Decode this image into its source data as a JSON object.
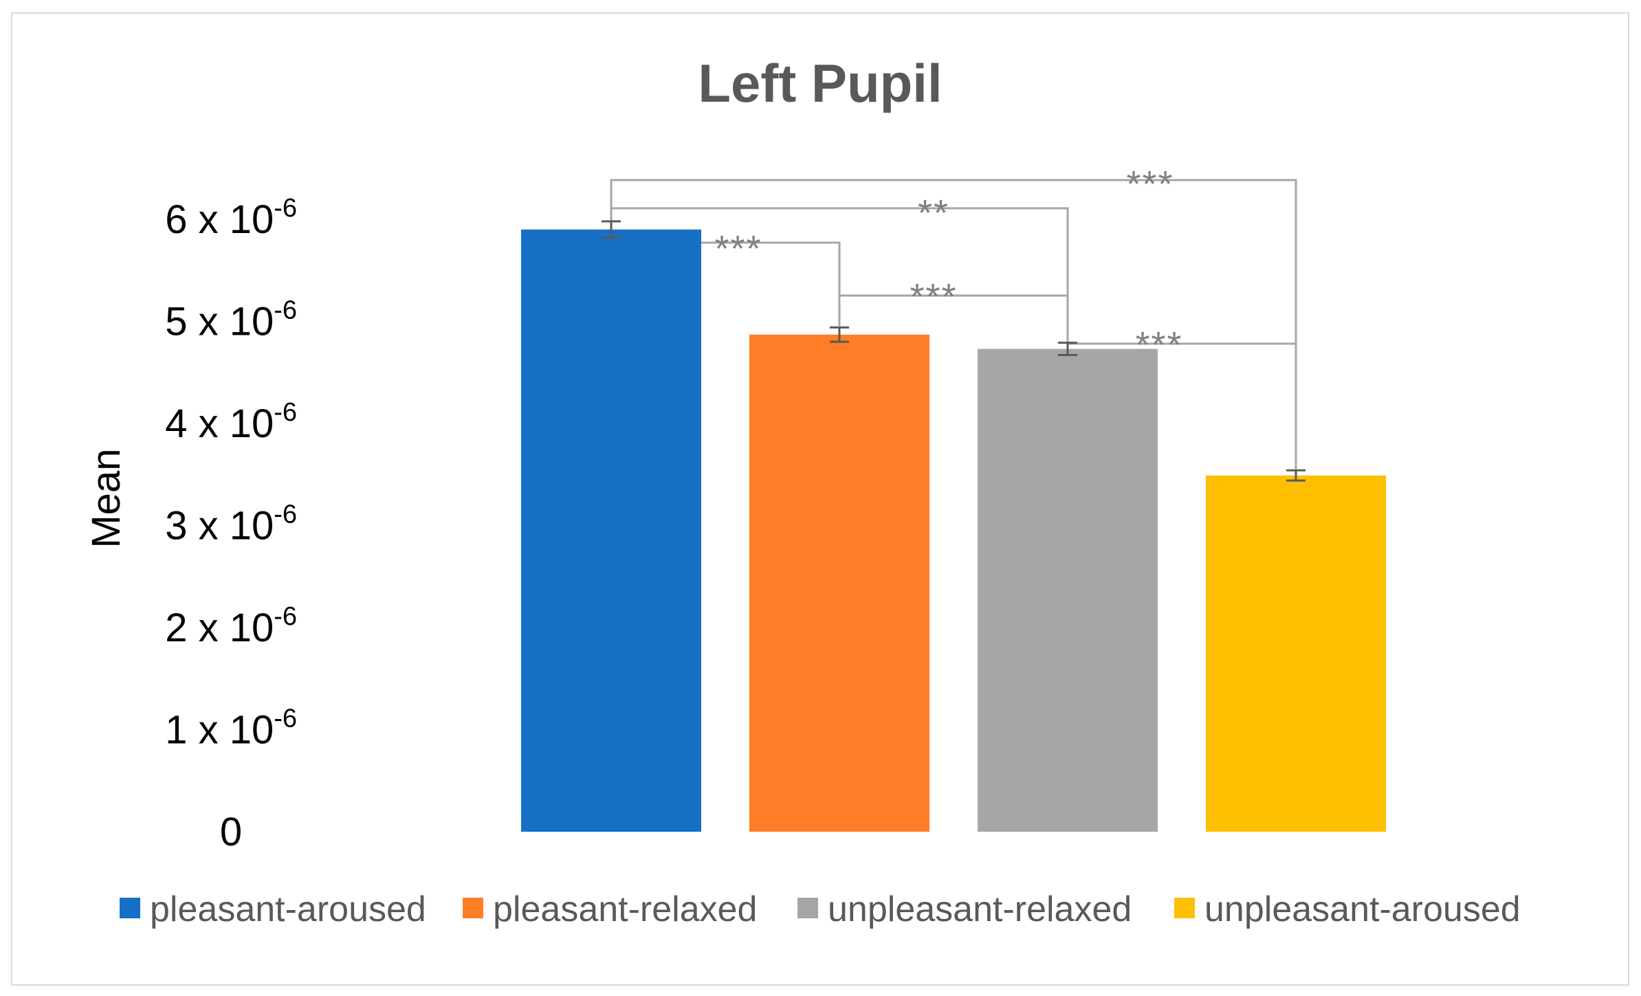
{
  "chart_data": {
    "type": "bar",
    "title": "Left Pupil",
    "ylabel": "Mean",
    "xlabel": "",
    "ylim": [
      0,
      6.0
    ],
    "y_ticks": [
      {
        "value": 0,
        "mantissa": "0",
        "exponent": ""
      },
      {
        "value": 1,
        "mantissa": "1 x 10",
        "exponent": "-6"
      },
      {
        "value": 2,
        "mantissa": "2 x 10",
        "exponent": "-6"
      },
      {
        "value": 3,
        "mantissa": "3 x 10",
        "exponent": "-6"
      },
      {
        "value": 4,
        "mantissa": "4 x 10",
        "exponent": "-6"
      },
      {
        "value": 5,
        "mantissa": "5 x 10",
        "exponent": "-6"
      },
      {
        "value": 6,
        "mantissa": "6 x 10",
        "exponent": "-6"
      }
    ],
    "value_unit_multiplier": "1e-6",
    "categories": [
      "pleasant-aroused",
      "pleasant-relaxed",
      "unpleasant-relaxed",
      "unpleasant-aroused"
    ],
    "series": [
      {
        "values": [
          5.9,
          4.87,
          4.73,
          3.49
        ],
        "errors": [
          0.08,
          0.07,
          0.06,
          0.05
        ]
      }
    ],
    "colors": [
      "#1570c6",
      "#fe7d26",
      "#a6a6a6",
      "#fdbf00"
    ],
    "significance": [
      {
        "from": 0,
        "to": 1,
        "label": "***"
      },
      {
        "from": 0,
        "to": 2,
        "label": "**"
      },
      {
        "from": 0,
        "to": 3,
        "label": "***"
      },
      {
        "from": 1,
        "to": 2,
        "label": "***"
      },
      {
        "from": 2,
        "to": 3,
        "label": "***"
      }
    ],
    "legend": {
      "placement": "bottom",
      "entries": [
        "pleasant-aroused",
        "pleasant-relaxed",
        "unpleasant-relaxed",
        "unpleasant-aroused"
      ]
    },
    "grid": false
  }
}
